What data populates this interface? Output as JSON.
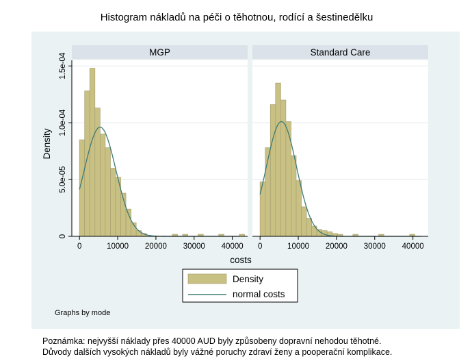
{
  "chart_data": {
    "type": "bar",
    "title": "Histogram nákladů na péči o těhotnou, rodící a šestinedělku",
    "xlabel": "costs",
    "ylabel": "Density",
    "xlim": [
      -2000,
      44000
    ],
    "ylim": [
      0,
      0.000155
    ],
    "x_ticks": [
      0,
      10000,
      20000,
      30000,
      40000
    ],
    "x_tick_labels": [
      "0",
      "10000",
      "20000",
      "30000",
      "40000"
    ],
    "y_ticks": [
      0,
      5e-05,
      0.0001,
      0.00015
    ],
    "y_tick_labels": [
      "0",
      "5.0e-05",
      "1.0e-04",
      "1.5e-04"
    ],
    "bin_width": 1350,
    "grid": true,
    "bar_color": "#c9c084",
    "bar_edge_color": "#a7a071",
    "curve_color": "#3e7a73",
    "panel_header_color": "#dbe2ea",
    "background_color": "#eaf2f3",
    "panels": [
      {
        "name": "MGP",
        "bin_starts": [
          0,
          1350,
          2700,
          4050,
          5400,
          6750,
          8100,
          9450,
          10800,
          12150,
          13500,
          14850,
          16200,
          24300,
          27000,
          31050,
          36450,
          41850
        ],
        "values": [
          8.5e-05,
          0.000128,
          0.000148,
          0.000113,
          9e-05,
          7.8e-05,
          6e-05,
          5.2e-05,
          3.8e-05,
          2.4e-05,
          1.2e-05,
          5e-06,
          2.5e-06,
          1.8e-06,
          1.8e-06,
          1.8e-06,
          1.8e-06,
          1.8e-06
        ],
        "normal_mean": 5400,
        "normal_sd": 4150
      },
      {
        "name": "Standard Care",
        "bin_starts": [
          0,
          1350,
          2700,
          4050,
          5400,
          6750,
          8100,
          9450,
          10800,
          12150,
          13500,
          14850,
          16200,
          17550,
          18900,
          20250,
          24300,
          31050,
          39150
        ],
        "values": [
          4.8e-05,
          7.8e-05,
          0.000116,
          0.000135,
          0.00012,
          0.000101,
          7.1e-05,
          4.9e-05,
          2.6e-05,
          1.6e-05,
          9e-06,
          6e-06,
          5e-06,
          4e-06,
          2.5e-06,
          1.8e-06,
          1.8e-06,
          1.8e-06,
          1.8e-06
        ],
        "normal_mean": 5600,
        "normal_sd": 3950
      }
    ],
    "legend": {
      "placement": "bottom",
      "entries": [
        "Density",
        "normal costs"
      ]
    },
    "byline": "Graphs by mode"
  },
  "note": {
    "line1": "Poznámka: nejvyšší náklady přes 40000 AUD byly způsobeny dopravní nehodou těhotné.",
    "line2": "Důvody dalších vysokých nákladů byly vážné poruchy zdraví ženy a pooperační komplikace."
  }
}
